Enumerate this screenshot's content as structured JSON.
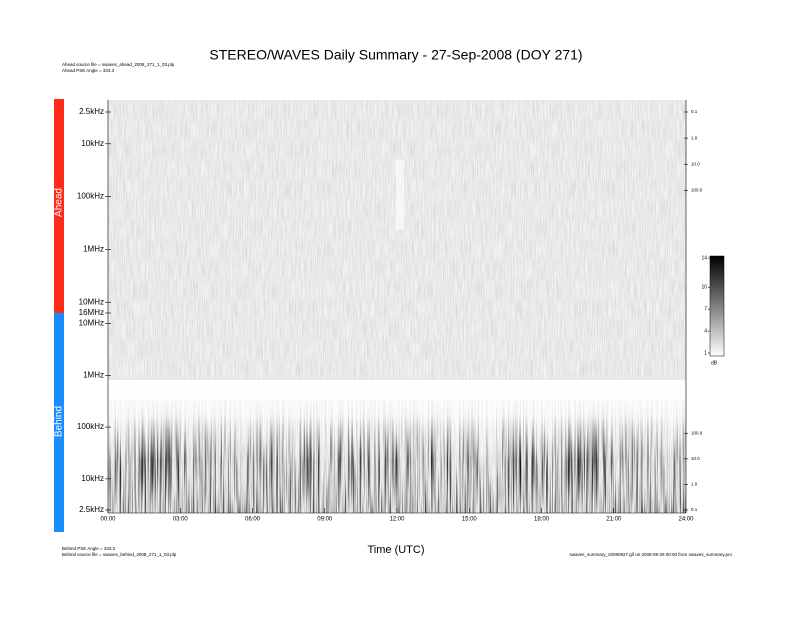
{
  "chart_data": {
    "type": "spectrogram",
    "title": "STEREO/WAVES Daily Summary - 27-Sep-2008 (DOY 271)",
    "xlabel": "Time (UTC)",
    "xlim": [
      0,
      24
    ],
    "xticks": [
      {
        "value": 0,
        "label": "00:00"
      },
      {
        "value": 3,
        "label": "03:00"
      },
      {
        "value": 6,
        "label": "06:00"
      },
      {
        "value": 9,
        "label": "09:00"
      },
      {
        "value": 12,
        "label": "12:00"
      },
      {
        "value": 15,
        "label": "15:00"
      },
      {
        "value": 18,
        "label": "18:00"
      },
      {
        "value": 21,
        "label": "21:00"
      },
      {
        "value": 24,
        "label": "24:00"
      }
    ],
    "notes_top": [
      "Ahead source file = swaves_ahead_2008_271_1_03.plp",
      "Ahead PSE Angle = 333.3"
    ],
    "notes_bottom": [
      "Behind PSE Angle = 333.3",
      "Behind source file = swaves_behind_2008_271_1_03.plp"
    ],
    "note_right": "swaves_summary_20080927.gif on 2008-09-29 00:00 from swaves_summary.pro",
    "panels": [
      {
        "name": "Ahead",
        "color": "#ff2a1a",
        "log_y": true,
        "ylim": [
          2500,
          16000000
        ],
        "yticks": [
          {
            "value": 2500,
            "label": "2.5kHz"
          },
          {
            "value": 10000,
            "label": "10kHz"
          },
          {
            "value": 100000,
            "label": "100kHz"
          },
          {
            "value": 1000000,
            "label": "1MHz"
          },
          {
            "value": 10000000,
            "label": "10MHz"
          },
          {
            "value": 16000000,
            "label": "16MHz"
          }
        ],
        "y2lim": [
          0.1,
          5000000
        ],
        "y2ticks": [
          {
            "value": 0.1,
            "label": "0.1"
          },
          {
            "value": 1,
            "label": "1.0"
          },
          {
            "value": 10,
            "label": "10.0"
          },
          {
            "value": 100,
            "label": "100.0"
          }
        ]
      },
      {
        "name": "Behind",
        "color": "#1a8cff",
        "log_y": true,
        "ylim": [
          16000000,
          2500
        ],
        "yticks": [
          {
            "value": 10000000,
            "label": "10MHz"
          },
          {
            "value": 1000000,
            "label": "1MHz"
          },
          {
            "value": 100000,
            "label": "100kHz"
          },
          {
            "value": 10000,
            "label": "10kHz"
          },
          {
            "value": 2500,
            "label": "2.5kHz"
          }
        ],
        "y2lim": [
          5000000,
          0.1
        ],
        "y2ticks": [
          {
            "value": 100,
            "label": "100.0"
          },
          {
            "value": 10,
            "label": "10.0"
          },
          {
            "value": 1,
            "label": "1.0"
          },
          {
            "value": 0.1,
            "label": "0.1"
          }
        ]
      }
    ],
    "colorbar": {
      "label": "dB",
      "clim": [
        1,
        14
      ],
      "ticks": [
        14,
        10,
        7,
        4,
        1
      ]
    }
  }
}
